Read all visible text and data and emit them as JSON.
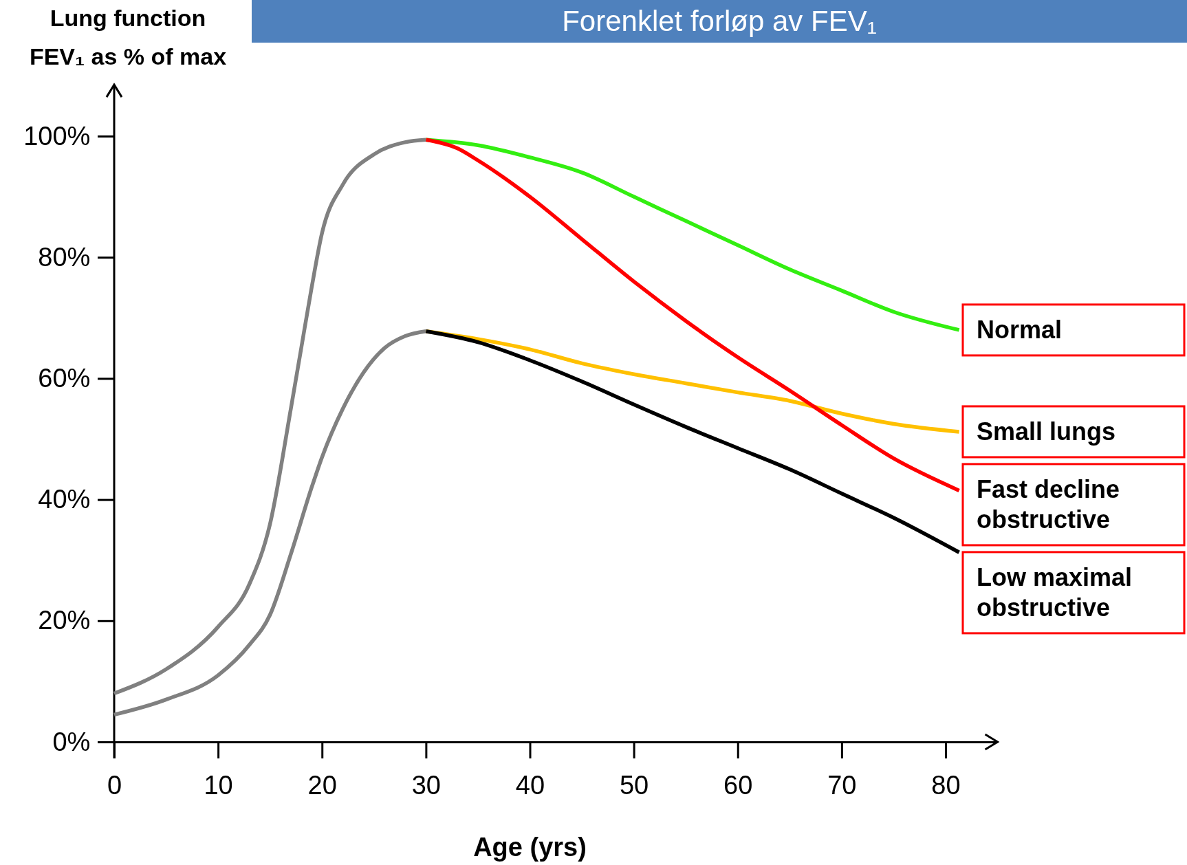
{
  "chart_data": {
    "type": "line",
    "title": "Forenklet forløp av FEV₁",
    "ylabel": "Lung function\nFEV₁ as % of max",
    "xlabel": "Age (yrs)",
    "xlim": [
      0,
      85
    ],
    "ylim": [
      0,
      108.5
    ],
    "xticks": [
      0,
      10,
      20,
      30,
      40,
      50,
      60,
      70,
      80
    ],
    "yticks": [
      {
        "value": 0,
        "label": "0%"
      },
      {
        "value": 20,
        "label": "20%"
      },
      {
        "value": 40,
        "label": "40%"
      },
      {
        "value": 60,
        "label": "60%"
      },
      {
        "value": 80,
        "label": "80%"
      },
      {
        "value": 100,
        "label": "100%"
      }
    ],
    "series": [
      {
        "color": "#808080",
        "x": [
          0,
          5,
          10,
          13,
          15,
          17,
          18,
          19,
          20,
          22,
          25,
          28,
          30
        ],
        "values": [
          8,
          12,
          19,
          26,
          36,
          55,
          65,
          75,
          84,
          92,
          97,
          99,
          99.4
        ]
      },
      {
        "color": "#808080",
        "x": [
          0,
          5,
          10,
          13,
          15,
          17,
          19,
          20,
          22,
          24,
          26,
          28,
          30
        ],
        "values": [
          4.5,
          7,
          11,
          16,
          21,
          31,
          42,
          47,
          55,
          61,
          65,
          67,
          67.8
        ]
      },
      {
        "name": "Normal",
        "color": "#33ee11",
        "x": [
          30,
          35,
          40,
          45,
          50,
          55,
          60,
          65,
          70,
          75,
          81.3
        ],
        "values": [
          99.4,
          98.5,
          96.5,
          94,
          90,
          86,
          82,
          78,
          74.5,
          71,
          68
        ]
      },
      {
        "name": "Small lungs",
        "color": "#ffc000",
        "x": [
          30,
          35,
          40,
          45,
          50,
          55,
          60,
          65,
          70,
          75,
          81.3
        ],
        "values": [
          67.8,
          66.5,
          64.8,
          62.5,
          60.7,
          59.2,
          57.7,
          56.3,
          54.2,
          52.5,
          51.2
        ]
      },
      {
        "name": "Fast decline obstructive",
        "color": "#ff0000",
        "x": [
          30,
          33,
          35,
          40,
          45,
          50,
          55,
          60,
          65,
          70,
          75,
          81.3
        ],
        "values": [
          99.4,
          98,
          96,
          90,
          83,
          76,
          69.5,
          63.5,
          58,
          52.3,
          46.8,
          41.5
        ]
      },
      {
        "name": "Low maximal obstructive",
        "color": "#000000",
        "x": [
          30,
          35,
          40,
          45,
          50,
          55,
          60,
          65,
          70,
          75,
          81.3
        ],
        "values": [
          67.8,
          66,
          63,
          59.5,
          55.7,
          52,
          48.5,
          45,
          41,
          37,
          31.3
        ]
      }
    ]
  }
}
